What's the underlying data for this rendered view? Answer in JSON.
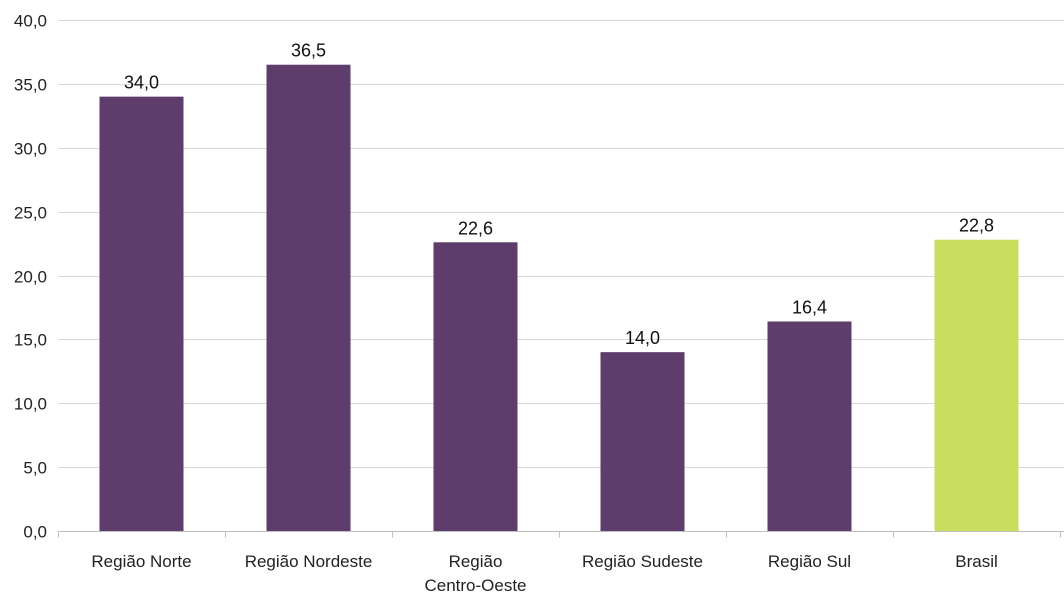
{
  "chart_data": {
    "type": "bar",
    "categories": [
      [
        "Região Norte"
      ],
      [
        "Região Nordeste"
      ],
      [
        "Região",
        "Centro-Oeste"
      ],
      [
        "Região Sudeste"
      ],
      [
        "Região Sul"
      ],
      [
        "Brasil"
      ]
    ],
    "values": [
      34.0,
      36.5,
      22.6,
      14.0,
      16.4,
      22.8
    ],
    "value_labels": [
      "34,0",
      "36,5",
      "22,6",
      "14,0",
      "16,4",
      "22,8"
    ],
    "bar_colors": [
      "#5e3c6b",
      "#5e3c6b",
      "#5e3c6b",
      "#5e3c6b",
      "#5e3c6b",
      "#c9dd5f"
    ],
    "ylim": [
      0,
      40
    ],
    "yticks": [
      0,
      5,
      10,
      15,
      20,
      25,
      30,
      35,
      40
    ],
    "ytick_labels": [
      "0,0",
      "5,0",
      "10,0",
      "15,0",
      "20,0",
      "25,0",
      "30,0",
      "35,0",
      "40,0"
    ],
    "title": "",
    "xlabel": "",
    "ylabel": "",
    "grid": true,
    "legend": "none"
  }
}
